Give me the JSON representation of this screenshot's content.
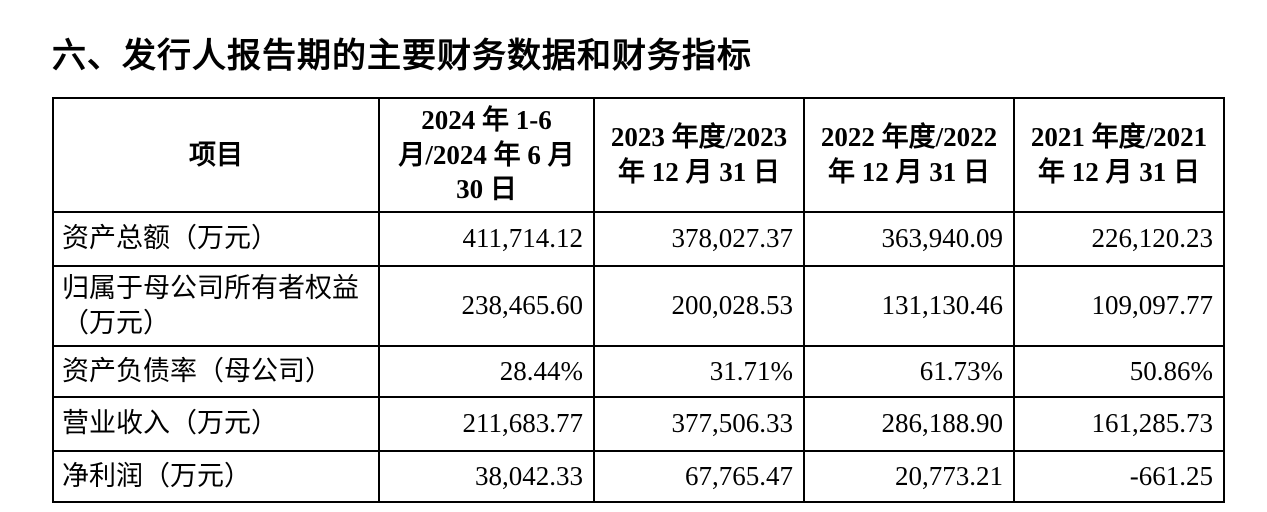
{
  "page": {
    "title": "六、发行人报告期的主要财务数据和财务指标"
  },
  "colors": {
    "text": "#000000",
    "border": "#000000",
    "background": "#ffffff"
  },
  "table": {
    "columns": [
      {
        "label": "项目"
      },
      {
        "label": "2024 年 1-6 月/2024 年 6 月 30 日"
      },
      {
        "label": "2023 年度/2023 年 12 月 31 日"
      },
      {
        "label": "2022 年度/2022 年 12 月 31 日"
      },
      {
        "label": "2021 年度/2021 年 12 月 31 日"
      }
    ],
    "rows": [
      {
        "label": "资产总额（万元）",
        "values": [
          "411,714.12",
          "378,027.37",
          "363,940.09",
          "226,120.23"
        ]
      },
      {
        "label": "归属于母公司所有者权益（万元）",
        "values": [
          "238,465.60",
          "200,028.53",
          "131,130.46",
          "109,097.77"
        ]
      },
      {
        "label": "资产负债率（母公司）",
        "values": [
          "28.44%",
          "31.71%",
          "61.73%",
          "50.86%"
        ]
      },
      {
        "label": "营业收入（万元）",
        "values": [
          "211,683.77",
          "377,506.33",
          "286,188.90",
          "161,285.73"
        ]
      },
      {
        "label": "净利润（万元）",
        "values": [
          "38,042.33",
          "67,765.47",
          "20,773.21",
          "-661.25"
        ]
      }
    ]
  }
}
